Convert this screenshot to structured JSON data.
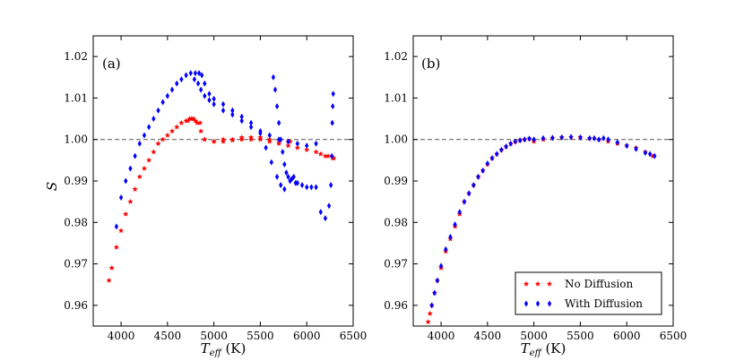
{
  "chart_data": [
    {
      "type": "scatter",
      "panel_label": "(a)",
      "xlabel_main": "T",
      "xlabel_sub": "eff",
      "xlabel_unit": " (K)",
      "ylabel": "S",
      "xlim": [
        3700,
        6500
      ],
      "ylim": [
        0.955,
        1.025
      ],
      "xticks": [
        4000,
        4500,
        5000,
        5500,
        6000,
        6500
      ],
      "yticks": [
        0.96,
        0.97,
        0.98,
        0.99,
        1.0,
        1.01,
        1.02
      ],
      "ytick_labels": [
        "0.96",
        "0.97",
        "0.98",
        "0.99",
        "1.00",
        "1.01",
        "1.02"
      ],
      "reference_line": 1.0,
      "series": [
        {
          "name": "No Diffusion",
          "color": "#ff0000",
          "marker": "star",
          "x": [
            3870,
            3900,
            3950,
            4000,
            4050,
            4100,
            4150,
            4200,
            4250,
            4300,
            4350,
            4400,
            4450,
            4500,
            4550,
            4600,
            4650,
            4700,
            4740,
            4780,
            4820,
            4860,
            4900,
            5000,
            5100,
            5200,
            5300,
            5400,
            5500,
            5600,
            5700,
            5800,
            5900,
            6000,
            6100,
            6200,
            6280,
            4720,
            4760,
            4800,
            4850,
            4900,
            5000,
            5100,
            5200,
            5300,
            5400,
            5500,
            5600,
            5700,
            5800,
            5820,
            6150,
            6230,
            6290
          ],
          "y": [
            0.966,
            0.969,
            0.974,
            0.978,
            0.982,
            0.985,
            0.988,
            0.991,
            0.993,
            0.995,
            0.997,
            0.999,
            1.0,
            1.001,
            1.002,
            1.003,
            1.004,
            1.0045,
            1.005,
            1.005,
            1.004,
            1.002,
            1.0,
            0.9995,
            0.9995,
            0.9998,
            1.0,
            1.0,
            1.0,
            0.9995,
            0.999,
            0.9985,
            0.998,
            0.9975,
            0.997,
            0.996,
            0.9955,
            1.0045,
            1.005,
            1.0045,
            1.004,
            1.0,
            0.9995,
            1.0,
            1.0,
            1.0005,
            1.0005,
            1.0005,
            1.0,
            0.9998,
            0.9995,
            0.9995,
            0.9965,
            0.996,
            0.9955
          ]
        },
        {
          "name": "With Diffusion",
          "color": "#0000ff",
          "marker": "diamond",
          "x": [
            3950,
            4000,
            4050,
            4100,
            4150,
            4200,
            4250,
            4300,
            4350,
            4400,
            4450,
            4500,
            4550,
            4600,
            4650,
            4700,
            4750,
            4800,
            4840,
            4870,
            4900,
            4950,
            5000,
            5100,
            5200,
            5300,
            5400,
            5500,
            5560,
            5620,
            5680,
            5720,
            5760,
            4790,
            4830,
            4860,
            4900,
            4950,
            5000,
            5100,
            5200,
            5300,
            5400,
            5500,
            5600,
            5700,
            5800,
            5900,
            6000,
            6100,
            5640,
            5660,
            5680,
            5700,
            5720,
            5740,
            5760,
            5780,
            5800,
            5820,
            5840,
            5860,
            5880,
            5900,
            5950,
            6000,
            6050,
            6100,
            6150,
            6200,
            6240,
            6260,
            6270,
            6275,
            6280,
            6285
          ],
          "y": [
            0.979,
            0.986,
            0.99,
            0.993,
            0.996,
            0.999,
            1.001,
            1.003,
            1.005,
            1.007,
            1.009,
            1.0105,
            1.012,
            1.0135,
            1.0145,
            1.0155,
            1.016,
            1.016,
            1.016,
            1.0155,
            1.0135,
            1.011,
            1.0098,
            1.0085,
            1.007,
            1.0055,
            1.004,
            1.0015,
            0.998,
            0.9945,
            0.991,
            0.989,
            0.988,
            1.0145,
            1.0135,
            1.012,
            1.0105,
            1.0095,
            1.0085,
            1.007,
            1.006,
            1.0045,
            1.003,
            1.002,
            1.001,
            1.0,
            0.9995,
            0.999,
            0.9985,
            0.999,
            1.015,
            1.012,
            1.008,
            1.004,
            1.0,
            0.997,
            0.994,
            0.992,
            0.991,
            0.99,
            0.9905,
            0.991,
            0.9895,
            0.9895,
            0.989,
            0.9885,
            0.9885,
            0.9885,
            0.9825,
            0.981,
            0.984,
            0.989,
            0.996,
            1.004,
            1.008,
            1.011
          ]
        }
      ]
    },
    {
      "type": "scatter",
      "panel_label": "(b)",
      "xlabel_main": "T",
      "xlabel_sub": "eff",
      "xlabel_unit": " (K)",
      "xlim": [
        3700,
        6500
      ],
      "ylim": [
        0.955,
        1.025
      ],
      "xticks": [
        4000,
        4500,
        5000,
        5500,
        6000,
        6500
      ],
      "yticks": [
        0.96,
        0.97,
        0.98,
        0.99,
        1.0,
        1.01,
        1.02
      ],
      "ytick_labels": [
        "0.96",
        "0.97",
        "0.98",
        "0.99",
        "1.00",
        "1.01",
        "1.02"
      ],
      "reference_line": 1.0,
      "legend_location": "lower-right",
      "series": [
        {
          "name": "No Diffusion",
          "color": "#ff0000",
          "marker": "star",
          "x": [
            3860,
            3880,
            3900,
            3930,
            3960,
            4000,
            4050,
            4100,
            4150,
            4200,
            4250,
            4300,
            4350,
            4400,
            4450,
            4500,
            4550,
            4600,
            4650,
            4700,
            4750,
            4800,
            4850,
            4900,
            4950,
            5000,
            5100,
            5200,
            5300,
            5400,
            5500,
            5600,
            5700,
            5800,
            5900,
            6000,
            6100,
            6200,
            6280
          ],
          "y": [
            0.956,
            0.958,
            0.96,
            0.963,
            0.966,
            0.969,
            0.973,
            0.976,
            0.979,
            0.982,
            0.985,
            0.987,
            0.989,
            0.991,
            0.9925,
            0.994,
            0.9955,
            0.9965,
            0.9975,
            0.9983,
            0.999,
            0.9995,
            0.9998,
            1.0,
            1.0002,
            0.9995,
            1.0,
            1.0003,
            1.0005,
            1.0005,
            1.0005,
            1.0003,
            1.0,
            0.9995,
            0.999,
            0.9985,
            0.998,
            0.997,
            0.996
          ]
        },
        {
          "name": "With Diffusion",
          "color": "#0000ff",
          "marker": "diamond",
          "x": [
            3900,
            3930,
            3960,
            4000,
            4050,
            4100,
            4150,
            4200,
            4250,
            4300,
            4350,
            4400,
            4450,
            4500,
            4550,
            4600,
            4650,
            4700,
            4750,
            4800,
            4850,
            4900,
            4950,
            5000,
            5100,
            5200,
            5300,
            5400,
            5500,
            5600,
            5650,
            5700,
            5750,
            5800,
            5900,
            6000,
            6100,
            6200,
            6250,
            6300
          ],
          "y": [
            0.96,
            0.963,
            0.966,
            0.9695,
            0.9735,
            0.9765,
            0.9795,
            0.9825,
            0.985,
            0.987,
            0.989,
            0.991,
            0.9925,
            0.9942,
            0.9955,
            0.9965,
            0.9975,
            0.9983,
            0.999,
            0.9995,
            0.9998,
            1.0,
            1.0002,
            1.0,
            1.0003,
            1.0004,
            1.0005,
            1.0006,
            1.0005,
            1.0003,
            1.0003,
            1.0,
            1.0003,
            1.0,
            0.9993,
            0.9985,
            0.9977,
            0.9968,
            0.9965,
            0.996
          ]
        }
      ]
    }
  ]
}
